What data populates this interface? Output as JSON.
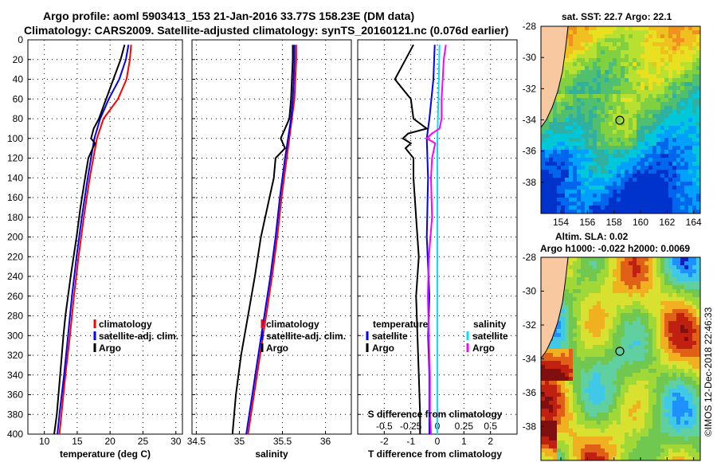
{
  "title_line1": "Argo profile: aoml 5903413_153 21-Jan-2016 33.77S 158.23E (DM data)",
  "title_line2": "Climatology: CARS2009. Satellite-adjusted climatology: synTS_20160121.nc (0.076d earlier)",
  "watermark": "©IMOS 12-Dec-2018 22:46:33",
  "colors": {
    "climatology": "#ff0000",
    "satellite": "#0000ff",
    "argo": "#000000",
    "argo_salinity_diff": "#ff00ff",
    "satellite_salinity_diff": "#00e0ff"
  },
  "chart_data": [
    {
      "type": "line",
      "name": "temperature",
      "xlabel": "temperature (deg C)",
      "ylabel": "",
      "xlim": [
        7.5,
        31
      ],
      "ylim": [
        400,
        0
      ],
      "x_ticks": [
        "10",
        "15",
        "20",
        "25",
        "30"
      ],
      "y_ticks": [
        "0",
        "20",
        "40",
        "60",
        "80",
        "100",
        "120",
        "140",
        "160",
        "180",
        "200",
        "220",
        "240",
        "260",
        "280",
        "300",
        "320",
        "340",
        "360",
        "380",
        "400"
      ],
      "legend": [
        "climatology",
        "satellite-adj. clim.",
        "Argo"
      ],
      "series": [
        {
          "name": "climatology",
          "depth": [
            5,
            20,
            40,
            60,
            80,
            100,
            140,
            180,
            220,
            260,
            300,
            340,
            380,
            400
          ],
          "values": [
            23.2,
            23.0,
            22.5,
            21.2,
            19.0,
            18.0,
            16.9,
            16.0,
            15.2,
            14.5,
            13.9,
            13.2,
            12.6,
            12.3
          ]
        },
        {
          "name": "satellite-adj. clim.",
          "depth": [
            5,
            20,
            40,
            60,
            80,
            100,
            140,
            180,
            220,
            260,
            300,
            340,
            380,
            400
          ],
          "values": [
            22.8,
            22.4,
            21.4,
            19.8,
            18.5,
            17.6,
            16.6,
            15.7,
            14.9,
            14.2,
            13.6,
            13.0,
            12.3,
            12.0
          ]
        },
        {
          "name": "Argo",
          "depth": [
            5,
            20,
            40,
            60,
            80,
            90,
            100,
            105,
            120,
            140,
            170,
            200,
            240,
            280,
            300,
            340,
            380,
            400
          ],
          "values": [
            22.2,
            21.6,
            20.5,
            19.4,
            18.3,
            17.5,
            17.1,
            17.7,
            16.7,
            16.2,
            15.5,
            14.9,
            14.0,
            13.2,
            12.9,
            12.4,
            11.9,
            11.5
          ]
        }
      ]
    },
    {
      "type": "line",
      "name": "salinity",
      "xlabel": "salinity",
      "xlim": [
        34.45,
        36.3
      ],
      "ylim": [
        400,
        0
      ],
      "x_ticks": [
        "34.5",
        "35",
        "35.5",
        "36"
      ],
      "legend": [
        "climatology",
        "satellite-adj. clim.",
        "Argo"
      ],
      "series": [
        {
          "name": "climatology",
          "depth": [
            5,
            20,
            40,
            60,
            80,
            120,
            160,
            200,
            240,
            280,
            320,
            360,
            400
          ],
          "values": [
            35.66,
            35.66,
            35.65,
            35.64,
            35.61,
            35.55,
            35.49,
            35.44,
            35.38,
            35.31,
            35.24,
            35.17,
            35.1
          ]
        },
        {
          "name": "satellite-adj. clim.",
          "depth": [
            5,
            20,
            40,
            60,
            80,
            120,
            160,
            200,
            240,
            280,
            320,
            360,
            400
          ],
          "values": [
            35.64,
            35.64,
            35.63,
            35.62,
            35.6,
            35.53,
            35.47,
            35.42,
            35.36,
            35.29,
            35.22,
            35.15,
            35.08
          ]
        },
        {
          "name": "Argo",
          "depth": [
            5,
            20,
            40,
            60,
            80,
            100,
            110,
            120,
            140,
            160,
            200,
            240,
            280,
            320,
            360,
            400
          ],
          "values": [
            35.62,
            35.62,
            35.61,
            35.6,
            35.58,
            35.48,
            35.53,
            35.42,
            35.4,
            35.35,
            35.25,
            35.18,
            35.1,
            35.02,
            34.96,
            34.92
          ]
        }
      ]
    },
    {
      "type": "line",
      "name": "differences",
      "xlabel": "T difference from climatology",
      "top_axis_label": "S difference from climatology",
      "xlim": [
        -3,
        3
      ],
      "ylim": [
        400,
        0
      ],
      "x_ticks": [
        "-2",
        "-1",
        "0",
        "1",
        "2"
      ],
      "top_ticks": [
        "-0.5",
        "-0.25",
        "0",
        "0.25",
        "0.5"
      ],
      "top_lim": [
        -0.75,
        0.75
      ],
      "legend_temperature_title": "temperature",
      "legend_salinity_title": "salinity",
      "legend_entries": [
        "satellite",
        "Argo",
        "satellite",
        "Argo"
      ],
      "series": [
        {
          "name": "T satellite",
          "axis": "T",
          "depth": [
            5,
            40,
            80,
            100,
            140,
            200,
            260,
            300,
            340,
            400
          ],
          "values": [
            -0.1,
            -0.15,
            -0.3,
            -0.4,
            -0.35,
            -0.4,
            -0.3,
            -0.35,
            -0.3,
            -0.3
          ]
        },
        {
          "name": "T Argo",
          "axis": "T",
          "depth": [
            5,
            20,
            40,
            60,
            80,
            90,
            95,
            100,
            105,
            110,
            120,
            140,
            180,
            220,
            260,
            300,
            340,
            380,
            400
          ],
          "values": [
            -0.9,
            -1.2,
            -1.6,
            -1.0,
            -0.9,
            -0.4,
            -1.1,
            -1.3,
            -1.0,
            -1.2,
            -0.9,
            -0.9,
            -0.8,
            -0.7,
            -0.8,
            -0.75,
            -0.7,
            -0.65,
            -0.65
          ]
        },
        {
          "name": "S satellite",
          "axis": "S",
          "depth": [
            5,
            60,
            100,
            200,
            300,
            400
          ],
          "values": [
            0.02,
            0.01,
            0.0,
            0.0,
            0.0,
            0.0
          ]
        },
        {
          "name": "S Argo",
          "axis": "S",
          "depth": [
            5,
            20,
            40,
            60,
            80,
            90,
            95,
            100,
            105,
            120,
            140,
            180,
            220,
            260,
            300,
            340,
            380,
            400
          ],
          "values": [
            0.08,
            0.06,
            0.05,
            0.04,
            0.04,
            0.02,
            -0.05,
            -0.1,
            -0.02,
            -0.05,
            -0.06,
            -0.05,
            -0.08,
            -0.09,
            -0.08,
            -0.07,
            -0.07,
            -0.06
          ]
        }
      ]
    },
    {
      "type": "heatmap",
      "name": "sst_map",
      "title": "sat. SST: 22.7 Argo: 22.1",
      "xlim": [
        152.5,
        164.5
      ],
      "ylim": [
        -40,
        -28
      ],
      "x_ticks": [
        "154",
        "156",
        "158",
        "160",
        "162",
        "164"
      ],
      "y_ticks": [
        "-28",
        "-30",
        "-32",
        "-34",
        "-36",
        "-38"
      ],
      "marker": {
        "lon": 158.23,
        "lat": -33.77
      }
    },
    {
      "type": "heatmap",
      "name": "sla_map",
      "title": "Altim. SLA: 0.02",
      "subtitle": "Argo h1000: -0.022 h2000: 0.0069",
      "xlim": [
        152.5,
        164.5
      ],
      "ylim": [
        -40,
        -28
      ],
      "x_ticks": [
        "154",
        "156",
        "158",
        "160",
        "162",
        "164"
      ],
      "y_ticks": [
        "-28",
        "-30",
        "-32",
        "-34",
        "-36",
        "-38"
      ],
      "marker": {
        "lon": 158.23,
        "lat": -33.77
      }
    }
  ]
}
